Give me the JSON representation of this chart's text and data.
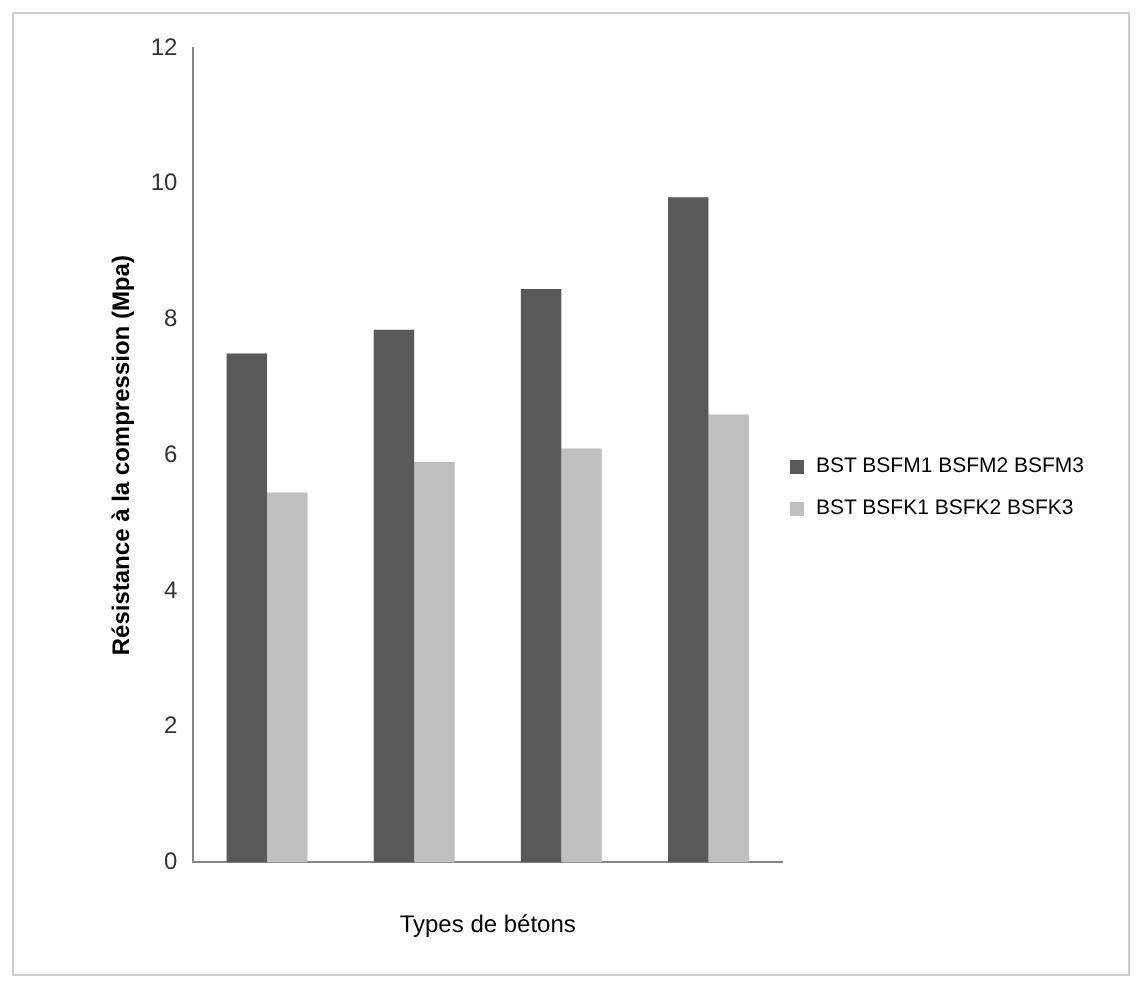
{
  "chart_data": {
    "type": "bar",
    "xlabel": "Types de bétons",
    "ylabel": "Résistance à la compression (Mpa)",
    "categories": [
      null,
      null,
      null,
      null
    ],
    "series": [
      {
        "name": "BST BSFM1 BSFM2 BSFM3",
        "color": "#595959",
        "values": [
          7.5,
          7.85,
          8.45,
          9.8
        ]
      },
      {
        "name": "BST BSFK1 BSFK2 BSFK3",
        "color": "#bfbfbf",
        "values": [
          5.45,
          5.9,
          6.1,
          6.6
        ]
      }
    ],
    "ylim": [
      0,
      12
    ],
    "yticks": [
      0,
      2,
      4,
      6,
      8,
      10,
      12
    ],
    "grid": false,
    "legend": "right"
  }
}
